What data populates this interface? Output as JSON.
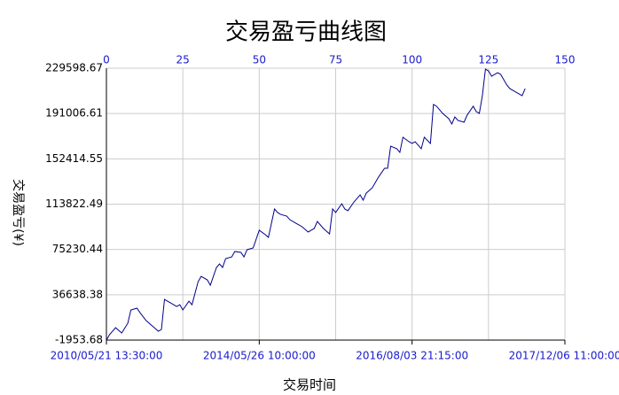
{
  "chart_data": {
    "type": "line",
    "title": "交易盈亏曲线图",
    "x_label": "交易时间",
    "y_label": "交易盈亏(¥)",
    "x": [
      0,
      1,
      3,
      5,
      7,
      8,
      10,
      11,
      13,
      15,
      17,
      18,
      19,
      21,
      23,
      24,
      25,
      27,
      28,
      30,
      31,
      33,
      34,
      36,
      37,
      38,
      39,
      41,
      42,
      44,
      45,
      46,
      48,
      50,
      52,
      53,
      55,
      56,
      57,
      59,
      60,
      62,
      64,
      66,
      67,
      68,
      69,
      70,
      71,
      73,
      74,
      75,
      77,
      78,
      79,
      81,
      83,
      84,
      85,
      87,
      89,
      91,
      92,
      93,
      95,
      96,
      97,
      99,
      100,
      101,
      102,
      103,
      104,
      106,
      107,
      108,
      109,
      110,
      112,
      113,
      114,
      115,
      117,
      118,
      120,
      121,
      122,
      123,
      124,
      125,
      126,
      128,
      129,
      130,
      131,
      132,
      133,
      135,
      136,
      137
    ],
    "series": [
      {
        "color": "#00008b",
        "values": [
          -1953.68,
          2600,
          8600,
          4100,
          12400,
          23700,
          25200,
          21400,
          14600,
          10100,
          5600,
          7100,
          32700,
          29700,
          26700,
          28200,
          23700,
          31200,
          28200,
          47800,
          52300,
          49300,
          44800,
          59900,
          62900,
          59900,
          67400,
          68900,
          73500,
          72700,
          68900,
          75000,
          76500,
          91600,
          87800,
          85500,
          109700,
          106700,
          105100,
          103600,
          100600,
          97600,
          94600,
          90100,
          91600,
          93100,
          99100,
          96100,
          93100,
          88500,
          109700,
          106700,
          114200,
          109700,
          108200,
          115700,
          121700,
          117200,
          123200,
          127800,
          136800,
          144400,
          144400,
          163200,
          161000,
          157900,
          170800,
          167000,
          165500,
          167000,
          164000,
          161000,
          170800,
          165500,
          198700,
          197200,
          194200,
          191100,
          186600,
          182100,
          188100,
          185100,
          183600,
          189600,
          197200,
          192600,
          191100,
          206200,
          228800,
          227300,
          222800,
          225800,
          224300,
          219800,
          215300,
          212200,
          210700,
          207700,
          206200,
          212200
        ]
      }
    ],
    "xlim": [
      0,
      150
    ],
    "xticks": [
      {
        "value": 0,
        "label": "2010/05/21 13:30:00"
      },
      {
        "value": 50,
        "label": "2014/05/26 10:00:00"
      },
      {
        "value": 100,
        "label": "2016/08/03 21:15:00"
      },
      {
        "value": 150,
        "label": "2017/12/06 11:00:00"
      }
    ],
    "x2ticks": [
      0,
      25,
      50,
      75,
      100,
      125,
      150
    ],
    "ylim": [
      -1953.68,
      229598.67
    ],
    "yticks": [
      -1953.68,
      36638.38,
      75230.44,
      113822.49,
      152414.55,
      191006.61,
      229598.67
    ],
    "grid": true
  }
}
